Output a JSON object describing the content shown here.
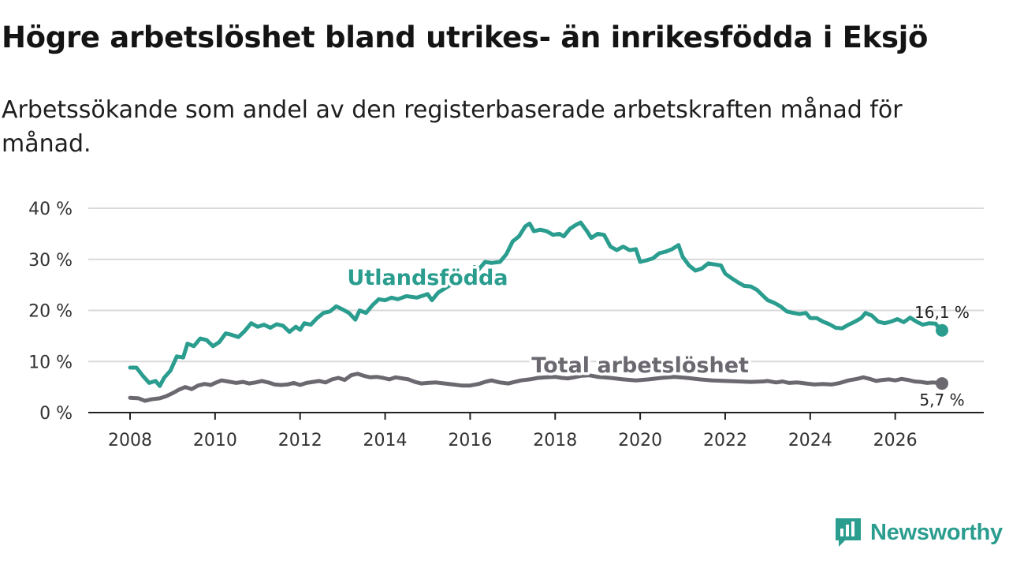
{
  "title": "Högre arbetslöshet bland utrikes- än inrikesfödda i Eksjö",
  "subtitle": "Arbetssökande som andel av den registerbaserade arbetskraften månad för månad.",
  "brand": {
    "name": "Newsworthy",
    "icon": "newsworthy-logo-icon"
  },
  "colors": {
    "foreign": "#2a9d8f",
    "total": "#6b6870",
    "grid": "#d9d9d9",
    "axis": "#222222",
    "text": "#333333"
  },
  "chart_data": {
    "type": "line",
    "title": "Högre arbetslöshet bland utrikes- än inrikesfödda i Eksjö",
    "xlabel": "",
    "ylabel": "",
    "xlim": [
      2007.7,
      2027.3
    ],
    "ylim": [
      0,
      40
    ],
    "yticks": [
      0,
      10,
      20,
      30,
      40
    ],
    "ytick_labels": [
      "0 %",
      "10 %",
      "20 %",
      "30 %",
      "40 %"
    ],
    "xticks": [
      2008,
      2010,
      2012,
      2014,
      2016,
      2018,
      2020,
      2022,
      2024,
      2026
    ],
    "xtick_labels": [
      "2008",
      "2010",
      "2012",
      "2014",
      "2016",
      "2018",
      "2020",
      "2022",
      "2024",
      "2026"
    ],
    "grid": true,
    "series": [
      {
        "name": "Utlandsfödda",
        "color": "#2a9d8f",
        "end_label": "16,1 %",
        "points": [
          [
            2008.0,
            8.8
          ],
          [
            2008.15,
            8.8
          ],
          [
            2008.3,
            7.2
          ],
          [
            2008.45,
            5.8
          ],
          [
            2008.6,
            6.2
          ],
          [
            2008.7,
            5.2
          ],
          [
            2008.8,
            6.8
          ],
          [
            2008.95,
            8.2
          ],
          [
            2009.1,
            11.0
          ],
          [
            2009.25,
            10.8
          ],
          [
            2009.35,
            13.5
          ],
          [
            2009.5,
            13.0
          ],
          [
            2009.65,
            14.5
          ],
          [
            2009.8,
            14.2
          ],
          [
            2009.95,
            13.0
          ],
          [
            2010.1,
            13.8
          ],
          [
            2010.25,
            15.5
          ],
          [
            2010.4,
            15.2
          ],
          [
            2010.55,
            14.8
          ],
          [
            2010.7,
            16.0
          ],
          [
            2010.85,
            17.5
          ],
          [
            2011.0,
            16.8
          ],
          [
            2011.15,
            17.2
          ],
          [
            2011.3,
            16.6
          ],
          [
            2011.45,
            17.3
          ],
          [
            2011.6,
            17.0
          ],
          [
            2011.75,
            15.8
          ],
          [
            2011.9,
            16.8
          ],
          [
            2012.0,
            16.2
          ],
          [
            2012.1,
            17.5
          ],
          [
            2012.25,
            17.2
          ],
          [
            2012.4,
            18.5
          ],
          [
            2012.55,
            19.5
          ],
          [
            2012.7,
            19.8
          ],
          [
            2012.85,
            20.8
          ],
          [
            2013.0,
            20.2
          ],
          [
            2013.15,
            19.5
          ],
          [
            2013.3,
            18.2
          ],
          [
            2013.4,
            20.0
          ],
          [
            2013.55,
            19.5
          ],
          [
            2013.7,
            21.0
          ],
          [
            2013.85,
            22.2
          ],
          [
            2014.0,
            22.0
          ],
          [
            2014.15,
            22.5
          ],
          [
            2014.3,
            22.2
          ],
          [
            2014.5,
            22.8
          ],
          [
            2014.75,
            22.5
          ],
          [
            2015.0,
            23.2
          ],
          [
            2015.1,
            22.0
          ],
          [
            2015.25,
            23.5
          ],
          [
            2015.5,
            24.8
          ],
          [
            2015.75,
            25.8
          ],
          [
            2016.0,
            27.0
          ],
          [
            2016.1,
            28.5
          ],
          [
            2016.2,
            28.0
          ],
          [
            2016.35,
            29.5
          ],
          [
            2016.5,
            29.3
          ],
          [
            2016.7,
            29.5
          ],
          [
            2016.85,
            31.0
          ],
          [
            2017.0,
            33.5
          ],
          [
            2017.15,
            34.5
          ],
          [
            2017.3,
            36.5
          ],
          [
            2017.4,
            37.0
          ],
          [
            2017.5,
            35.5
          ],
          [
            2017.65,
            35.8
          ],
          [
            2017.8,
            35.5
          ],
          [
            2017.95,
            34.8
          ],
          [
            2018.1,
            35.0
          ],
          [
            2018.2,
            34.5
          ],
          [
            2018.35,
            36.0
          ],
          [
            2018.5,
            36.8
          ],
          [
            2018.6,
            37.2
          ],
          [
            2018.75,
            35.5
          ],
          [
            2018.85,
            34.2
          ],
          [
            2019.0,
            35.0
          ],
          [
            2019.15,
            34.8
          ],
          [
            2019.3,
            32.5
          ],
          [
            2019.45,
            31.8
          ],
          [
            2019.6,
            32.5
          ],
          [
            2019.75,
            31.8
          ],
          [
            2019.9,
            32.0
          ],
          [
            2020.0,
            29.5
          ],
          [
            2020.15,
            29.8
          ],
          [
            2020.3,
            30.2
          ],
          [
            2020.45,
            31.2
          ],
          [
            2020.6,
            31.5
          ],
          [
            2020.75,
            32.0
          ],
          [
            2020.9,
            32.8
          ],
          [
            2021.0,
            30.5
          ],
          [
            2021.15,
            28.8
          ],
          [
            2021.3,
            27.8
          ],
          [
            2021.45,
            28.2
          ],
          [
            2021.6,
            29.2
          ],
          [
            2021.75,
            29.0
          ],
          [
            2021.9,
            28.8
          ],
          [
            2022.0,
            27.2
          ],
          [
            2022.15,
            26.3
          ],
          [
            2022.3,
            25.5
          ],
          [
            2022.45,
            24.8
          ],
          [
            2022.6,
            24.7
          ],
          [
            2022.75,
            24.0
          ],
          [
            2022.9,
            22.8
          ],
          [
            2023.0,
            22.0
          ],
          [
            2023.15,
            21.5
          ],
          [
            2023.3,
            20.8
          ],
          [
            2023.45,
            19.8
          ],
          [
            2023.6,
            19.5
          ],
          [
            2023.75,
            19.3
          ],
          [
            2023.9,
            19.5
          ],
          [
            2024.0,
            18.5
          ],
          [
            2024.15,
            18.5
          ],
          [
            2024.3,
            17.8
          ],
          [
            2024.45,
            17.3
          ],
          [
            2024.6,
            16.6
          ],
          [
            2024.75,
            16.5
          ],
          [
            2024.9,
            17.2
          ],
          [
            2025.05,
            17.8
          ],
          [
            2025.2,
            18.5
          ],
          [
            2025.3,
            19.5
          ],
          [
            2025.45,
            19.0
          ],
          [
            2025.6,
            17.8
          ],
          [
            2025.75,
            17.5
          ],
          [
            2025.9,
            17.8
          ],
          [
            2026.05,
            18.3
          ],
          [
            2026.2,
            17.7
          ],
          [
            2026.35,
            18.6
          ],
          [
            2026.5,
            17.8
          ],
          [
            2026.65,
            17.2
          ],
          [
            2026.8,
            17.5
          ],
          [
            2026.95,
            17.4
          ],
          [
            2027.05,
            16.3
          ],
          [
            2027.1,
            16.1
          ]
        ]
      },
      {
        "name": "Total arbetslöshet",
        "color": "#6b6870",
        "end_label": "5,7 %",
        "points": [
          [
            2008.0,
            2.9
          ],
          [
            2008.2,
            2.8
          ],
          [
            2008.35,
            2.3
          ],
          [
            2008.5,
            2.6
          ],
          [
            2008.7,
            2.8
          ],
          [
            2008.85,
            3.2
          ],
          [
            2009.0,
            3.8
          ],
          [
            2009.15,
            4.5
          ],
          [
            2009.3,
            5.0
          ],
          [
            2009.45,
            4.6
          ],
          [
            2009.6,
            5.3
          ],
          [
            2009.75,
            5.6
          ],
          [
            2009.9,
            5.4
          ],
          [
            2010.0,
            5.8
          ],
          [
            2010.15,
            6.3
          ],
          [
            2010.3,
            6.1
          ],
          [
            2010.5,
            5.8
          ],
          [
            2010.65,
            6.0
          ],
          [
            2010.8,
            5.7
          ],
          [
            2010.95,
            5.9
          ],
          [
            2011.1,
            6.2
          ],
          [
            2011.25,
            5.9
          ],
          [
            2011.4,
            5.5
          ],
          [
            2011.55,
            5.4
          ],
          [
            2011.7,
            5.5
          ],
          [
            2011.85,
            5.8
          ],
          [
            2012.0,
            5.4
          ],
          [
            2012.15,
            5.8
          ],
          [
            2012.3,
            6.0
          ],
          [
            2012.45,
            6.2
          ],
          [
            2012.6,
            5.9
          ],
          [
            2012.75,
            6.5
          ],
          [
            2012.9,
            6.8
          ],
          [
            2013.05,
            6.4
          ],
          [
            2013.2,
            7.3
          ],
          [
            2013.35,
            7.6
          ],
          [
            2013.5,
            7.2
          ],
          [
            2013.65,
            6.9
          ],
          [
            2013.8,
            7.0
          ],
          [
            2013.95,
            6.8
          ],
          [
            2014.1,
            6.5
          ],
          [
            2014.25,
            6.9
          ],
          [
            2014.4,
            6.7
          ],
          [
            2014.55,
            6.5
          ],
          [
            2014.7,
            6.0
          ],
          [
            2014.85,
            5.7
          ],
          [
            2015.0,
            5.8
          ],
          [
            2015.2,
            5.9
          ],
          [
            2015.4,
            5.7
          ],
          [
            2015.6,
            5.5
          ],
          [
            2015.8,
            5.3
          ],
          [
            2016.0,
            5.3
          ],
          [
            2016.2,
            5.6
          ],
          [
            2016.35,
            6.0
          ],
          [
            2016.5,
            6.3
          ],
          [
            2016.7,
            5.9
          ],
          [
            2016.9,
            5.7
          ],
          [
            2017.05,
            6.0
          ],
          [
            2017.2,
            6.3
          ],
          [
            2017.4,
            6.5
          ],
          [
            2017.6,
            6.8
          ],
          [
            2017.8,
            6.9
          ],
          [
            2018.0,
            7.0
          ],
          [
            2018.15,
            6.8
          ],
          [
            2018.3,
            6.7
          ],
          [
            2018.45,
            6.9
          ],
          [
            2018.6,
            7.2
          ],
          [
            2018.8,
            7.3
          ],
          [
            2019.0,
            7.0
          ],
          [
            2019.3,
            6.8
          ],
          [
            2019.6,
            6.5
          ],
          [
            2019.9,
            6.3
          ],
          [
            2020.2,
            6.5
          ],
          [
            2020.5,
            6.8
          ],
          [
            2020.8,
            7.0
          ],
          [
            2021.1,
            6.8
          ],
          [
            2021.4,
            6.5
          ],
          [
            2021.7,
            6.3
          ],
          [
            2022.0,
            6.2
          ],
          [
            2022.3,
            6.1
          ],
          [
            2022.6,
            6.0
          ],
          [
            2022.9,
            6.1
          ],
          [
            2023.0,
            6.2
          ],
          [
            2023.2,
            5.9
          ],
          [
            2023.35,
            6.1
          ],
          [
            2023.5,
            5.8
          ],
          [
            2023.7,
            5.9
          ],
          [
            2023.9,
            5.7
          ],
          [
            2024.1,
            5.5
          ],
          [
            2024.3,
            5.6
          ],
          [
            2024.5,
            5.5
          ],
          [
            2024.7,
            5.8
          ],
          [
            2024.9,
            6.3
          ],
          [
            2025.1,
            6.6
          ],
          [
            2025.25,
            6.9
          ],
          [
            2025.4,
            6.6
          ],
          [
            2025.55,
            6.2
          ],
          [
            2025.7,
            6.4
          ],
          [
            2025.85,
            6.5
          ],
          [
            2026.0,
            6.3
          ],
          [
            2026.15,
            6.6
          ],
          [
            2026.3,
            6.4
          ],
          [
            2026.45,
            6.1
          ],
          [
            2026.6,
            6.0
          ],
          [
            2026.75,
            5.8
          ],
          [
            2026.9,
            5.9
          ],
          [
            2027.0,
            5.8
          ],
          [
            2027.1,
            5.7
          ]
        ]
      }
    ],
    "annotations": [
      {
        "series": "Utlandsfödda",
        "text": "Utlandsfödda",
        "at_x": 2015.0,
        "at_y": 25.0
      },
      {
        "series": "Total arbetslöshet",
        "text": "Total arbetslöshet",
        "at_x": 2020.0,
        "at_y": 7.9
      }
    ]
  }
}
